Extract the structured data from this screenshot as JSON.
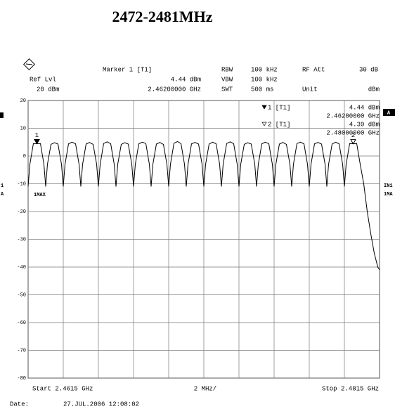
{
  "chart_data": {
    "type": "line",
    "title": "2472-2481MHz",
    "header": {
      "ref_lvl_label": "Ref Lvl",
      "ref_lvl": "20 dBm",
      "marker_title": "Marker 1 [T1]",
      "marker_level": "4.44 dBm",
      "marker_freq": "2.46200000 GHz",
      "rbw_label": "RBW",
      "rbw": "100 kHz",
      "vbw_label": "VBW",
      "vbw": "100 kHz",
      "swt_label": "SWT",
      "swt": "500 ms",
      "rfatt_label": "RF Att",
      "rfatt": "30 dB",
      "unit_label": "Unit",
      "unit": "dBm"
    },
    "side_labels": {
      "a_box": "A",
      "trace_left": "1MAX",
      "right_in": "IN1",
      "right_ma": "1MA",
      "left_1": "1",
      "left_a": "A"
    },
    "footer": {
      "start": "Start 2.4615 GHz",
      "span": "2 MHz/",
      "stop": "Stop 2.4815 GHz",
      "date_label": "Date:",
      "date": "27.JUL.2006  12:08:02"
    },
    "xlim": [
      2.4615,
      2.4815
    ],
    "xticks": [
      2.4615,
      2.4635,
      2.4655,
      2.4675,
      2.4695,
      2.4715,
      2.4735,
      2.4755,
      2.4775,
      2.4795,
      2.4815
    ],
    "ylim": [
      -80,
      20
    ],
    "yticks": [
      20,
      10,
      0,
      -10,
      -20,
      -30,
      -40,
      -50,
      -60,
      -70,
      -80
    ],
    "grid": true,
    "color": "#000000",
    "markers": [
      {
        "label": "1 [T1]",
        "tag": "1",
        "x": 2.462,
        "x_label": "2.46200000 GHz",
        "value": 4.44,
        "value_label": "4.44 dBm",
        "filled": true
      },
      {
        "label": "2 [T1]",
        "tag": "2",
        "x": 2.48,
        "x_label": "2.48000000 GHz",
        "value": 4.39,
        "value_label": "4.39 dBm",
        "filled": false
      }
    ],
    "x": [
      2.4615,
      2.4616,
      2.4618,
      2.462,
      2.4622,
      2.4624,
      2.4625,
      2.4626,
      2.4628,
      2.463,
      2.4632,
      2.4634,
      2.4635,
      2.4636,
      2.4638,
      2.464,
      2.4642,
      2.4644,
      2.4645,
      2.4646,
      2.4648,
      2.465,
      2.4652,
      2.4654,
      2.4655,
      2.4656,
      2.4658,
      2.466,
      2.4662,
      2.4664,
      2.4665,
      2.4666,
      2.4668,
      2.467,
      2.4672,
      2.4674,
      2.4675,
      2.4676,
      2.4678,
      2.468,
      2.4682,
      2.4684,
      2.4685,
      2.4686,
      2.4688,
      2.469,
      2.4692,
      2.4694,
      2.4695,
      2.4696,
      2.4698,
      2.47,
      2.4702,
      2.4704,
      2.4705,
      2.4706,
      2.4708,
      2.471,
      2.4712,
      2.4714,
      2.4715,
      2.4716,
      2.4718,
      2.472,
      2.4722,
      2.4724,
      2.4725,
      2.4726,
      2.4728,
      2.473,
      2.4732,
      2.4734,
      2.4735,
      2.4736,
      2.4738,
      2.474,
      2.4742,
      2.4744,
      2.4745,
      2.4746,
      2.4748,
      2.475,
      2.4752,
      2.4754,
      2.4755,
      2.4756,
      2.4758,
      2.476,
      2.4762,
      2.4764,
      2.4765,
      2.4766,
      2.4768,
      2.477,
      2.4772,
      2.4774,
      2.4775,
      2.4776,
      2.4778,
      2.478,
      2.4782,
      2.4784,
      2.4785,
      2.4786,
      2.4788,
      2.479,
      2.4792,
      2.4794,
      2.4795,
      2.4796,
      2.4798,
      2.48,
      2.4802,
      2.4804,
      2.4806,
      2.4808,
      2.481,
      2.4812,
      2.4814,
      2.4815
    ],
    "values": [
      -11,
      -3,
      4.5,
      4.44,
      4.5,
      -3,
      -11,
      -3,
      4.2,
      4.8,
      4.3,
      -3,
      -11,
      -3,
      4.4,
      5,
      4.4,
      -3,
      -11,
      -3,
      4.3,
      4.9,
      4.2,
      -3,
      -11,
      -3,
      4.5,
      5.1,
      4.4,
      -3,
      -11,
      -3,
      4.2,
      4.8,
      4.3,
      -3,
      -11,
      -3,
      4.4,
      5,
      4.5,
      -3,
      -11,
      -3,
      4.3,
      4.9,
      4.2,
      -3,
      -11,
      -3,
      4.6,
      5.2,
      4.5,
      -3,
      -11,
      -3,
      4.4,
      4.9,
      4.3,
      -3,
      -11,
      -3,
      4.3,
      5,
      4.4,
      -3,
      -11,
      -3,
      4.5,
      5.1,
      4.4,
      -3,
      -11,
      -3,
      4.2,
      4.8,
      4.3,
      -3,
      -11,
      -3,
      4.4,
      5,
      4.4,
      -3,
      -11,
      -3,
      4.3,
      4.9,
      4.2,
      -3,
      -11,
      -3,
      4.5,
      5,
      4.4,
      -3,
      -11,
      -3,
      4.4,
      4.9,
      4.3,
      -3,
      -11,
      -3,
      4.3,
      5,
      4.4,
      -3,
      -11,
      -3,
      4.5,
      4.39,
      4.5,
      -3,
      -10,
      -20,
      -28,
      -35,
      -40,
      -41
    ]
  }
}
